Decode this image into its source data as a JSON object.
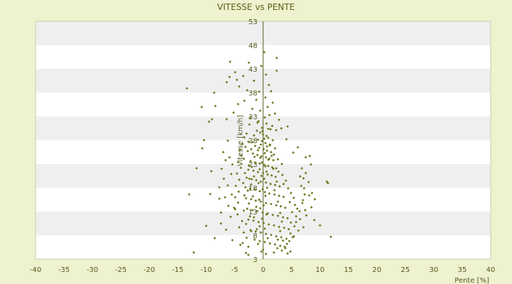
{
  "chart_data": {
    "type": "scatter",
    "title": "VITESSE vs PENTE",
    "xlabel": "Pente [%]",
    "ylabel": "Vitesse [km/h]",
    "xlim": [
      -40,
      40
    ],
    "ylim": [
      3,
      53
    ],
    "xticks": [
      "-40",
      "-35",
      "-30",
      "-25",
      "-20",
      "-15",
      "-10",
      "-5",
      "0",
      "5",
      "10",
      "15",
      "20",
      "25",
      "30",
      "35",
      "40"
    ],
    "yticks": [
      "3",
      "8",
      "13",
      "18",
      "23",
      "28",
      "33",
      "38",
      "43",
      "48",
      "53"
    ],
    "grid": "alternating horizontal bands",
    "colors": {
      "background": "#eef2cf",
      "band_light": "#ffffff",
      "band_dark": "#efefef",
      "marker": "#6b7a1f",
      "axis": "#555a20"
    },
    "points": [
      [
        -13.4,
        38.9
      ],
      [
        -12.2,
        4.4
      ],
      [
        -10.8,
        35.0
      ],
      [
        -10.0,
        10.0
      ],
      [
        -9.5,
        31.9
      ],
      [
        -9.0,
        32.4
      ],
      [
        -8.4,
        35.2
      ],
      [
        -8.6,
        38.0
      ],
      [
        -10.4,
        28.0
      ],
      [
        -10.7,
        26.3
      ],
      [
        -9.3,
        16.7
      ],
      [
        -9.1,
        21.5
      ],
      [
        -11.7,
        22.1
      ],
      [
        -13.0,
        16.6
      ],
      [
        -8.5,
        7.4
      ],
      [
        -7.7,
        15.7
      ],
      [
        -7.4,
        12.8
      ],
      [
        -7.4,
        10.5
      ],
      [
        -5.8,
        44.5
      ],
      [
        -5.9,
        41.3
      ],
      [
        -6.4,
        40.2
      ],
      [
        -4.9,
        42.3
      ],
      [
        -4.6,
        40.7
      ],
      [
        -4.4,
        35.6
      ],
      [
        -5.2,
        33.8
      ],
      [
        -6.4,
        32.4
      ],
      [
        -6.2,
        27.9
      ],
      [
        -7.0,
        25.5
      ],
      [
        -5.9,
        24.4
      ],
      [
        -5.4,
        22.9
      ],
      [
        -5.6,
        20.9
      ],
      [
        -6.2,
        18.5
      ],
      [
        -5.5,
        16.6
      ],
      [
        -4.9,
        13.5
      ],
      [
        -4.2,
        39.3
      ],
      [
        -3.3,
        36.3
      ],
      [
        -3.5,
        41.5
      ],
      [
        -2.8,
        38.5
      ],
      [
        -2.5,
        44.3
      ],
      [
        -4.0,
        6.0
      ],
      [
        -3.0,
        4.3
      ],
      [
        -2.6,
        3.9
      ],
      [
        0.2,
        46.5
      ],
      [
        2.4,
        45.3
      ],
      [
        2.4,
        42.6
      ],
      [
        1.4,
        38.3
      ],
      [
        1.1,
        33.3
      ],
      [
        1.6,
        31.0
      ],
      [
        2.3,
        30.1
      ],
      [
        3.2,
        30.5
      ],
      [
        4.3,
        30.9
      ],
      [
        4.1,
        28.2
      ],
      [
        5.3,
        25.4
      ],
      [
        6.1,
        26.5
      ],
      [
        7.5,
        24.4
      ],
      [
        8.4,
        22.9
      ],
      [
        8.2,
        24.7
      ],
      [
        7.5,
        21.1
      ],
      [
        6.5,
        20.4
      ],
      [
        8.0,
        19.2
      ],
      [
        7.2,
        17.9
      ],
      [
        8.1,
        16.4
      ],
      [
        11.2,
        19.3
      ],
      [
        11.4,
        19.0
      ],
      [
        7.0,
        15.4
      ],
      [
        6.4,
        13.1
      ],
      [
        7.6,
        12.2
      ],
      [
        5.8,
        10.8
      ],
      [
        7.1,
        9.7
      ],
      [
        5.2,
        7.6
      ],
      [
        4.6,
        6.8
      ],
      [
        10.0,
        10.1
      ],
      [
        11.9,
        7.7
      ],
      [
        3.9,
        5.3
      ],
      [
        4.8,
        4.6
      ],
      [
        4.3,
        4.2
      ],
      [
        3.3,
        4.8
      ],
      [
        2.5,
        5.3
      ],
      [
        1.9,
        4.4
      ],
      [
        -1.1,
        30.0
      ],
      [
        -0.5,
        29.6
      ],
      [
        0.0,
        29.2
      ],
      [
        0.6,
        28.9
      ],
      [
        0.9,
        28.5
      ],
      [
        -0.9,
        28.1
      ],
      [
        -0.2,
        27.8
      ],
      [
        0.4,
        27.4
      ],
      [
        1.2,
        27.1
      ],
      [
        -1.4,
        26.8
      ],
      [
        -0.7,
        26.4
      ],
      [
        0.1,
        26.1
      ],
      [
        0.7,
        25.8
      ],
      [
        1.4,
        25.5
      ],
      [
        -1.8,
        25.2
      ],
      [
        -1.0,
        24.9
      ],
      [
        -0.3,
        24.6
      ],
      [
        0.5,
        24.4
      ],
      [
        1.1,
        24.1
      ],
      [
        1.8,
        23.8
      ],
      [
        -2.2,
        23.6
      ],
      [
        -1.4,
        23.3
      ],
      [
        -0.6,
        23.1
      ],
      [
        0.2,
        22.8
      ],
      [
        0.9,
        22.6
      ],
      [
        1.6,
        22.3
      ],
      [
        2.3,
        22.1
      ],
      [
        -2.6,
        21.8
      ],
      [
        -1.7,
        21.6
      ],
      [
        -0.9,
        21.3
      ],
      [
        0.0,
        21.1
      ],
      [
        0.8,
        20.8
      ],
      [
        1.5,
        20.6
      ],
      [
        2.2,
        20.3
      ],
      [
        -2.9,
        20.1
      ],
      [
        -2.0,
        19.8
      ],
      [
        -1.2,
        19.6
      ],
      [
        -0.4,
        19.3
      ],
      [
        0.5,
        19.1
      ],
      [
        1.3,
        18.8
      ],
      [
        2.1,
        18.6
      ],
      [
        2.9,
        18.3
      ],
      [
        -3.1,
        18.1
      ],
      [
        -2.3,
        17.8
      ],
      [
        -1.5,
        17.6
      ],
      [
        -0.6,
        17.3
      ],
      [
        0.3,
        17.1
      ],
      [
        1.1,
        16.8
      ],
      [
        2.0,
        16.6
      ],
      [
        2.8,
        16.3
      ],
      [
        3.6,
        16.1
      ],
      [
        -3.0,
        15.8
      ],
      [
        -2.1,
        15.6
      ],
      [
        -1.3,
        15.3
      ],
      [
        -0.4,
        15.1
      ],
      [
        0.5,
        14.8
      ],
      [
        1.4,
        14.6
      ],
      [
        2.3,
        14.3
      ],
      [
        3.1,
        14.1
      ],
      [
        3.9,
        13.8
      ],
      [
        -2.8,
        13.6
      ],
      [
        -1.9,
        13.3
      ],
      [
        -1.0,
        13.1
      ],
      [
        -0.1,
        12.8
      ],
      [
        0.8,
        12.6
      ],
      [
        1.7,
        12.3
      ],
      [
        2.6,
        12.1
      ],
      [
        3.5,
        11.8
      ],
      [
        4.3,
        11.6
      ],
      [
        -2.6,
        11.3
      ],
      [
        -1.7,
        11.1
      ],
      [
        -0.8,
        10.8
      ],
      [
        0.1,
        10.6
      ],
      [
        1.0,
        10.3
      ],
      [
        1.9,
        10.1
      ],
      [
        2.8,
        9.8
      ],
      [
        3.7,
        9.6
      ],
      [
        4.5,
        9.3
      ],
      [
        -2.2,
        9.1
      ],
      [
        -1.3,
        8.8
      ],
      [
        -0.4,
        8.6
      ],
      [
        0.5,
        8.3
      ],
      [
        1.4,
        8.1
      ],
      [
        2.3,
        7.8
      ],
      [
        3.2,
        7.6
      ],
      [
        4.1,
        7.3
      ],
      [
        -1.5,
        7.1
      ],
      [
        -0.6,
        6.8
      ],
      [
        0.3,
        6.6
      ],
      [
        1.2,
        6.3
      ],
      [
        2.1,
        6.1
      ],
      [
        3.0,
        5.8
      ],
      [
        3.8,
        5.6
      ],
      [
        -0.2,
        30.6
      ],
      [
        0.6,
        31.5
      ],
      [
        -0.8,
        32.0
      ],
      [
        0.3,
        32.8
      ],
      [
        -0.5,
        34.2
      ],
      [
        0.8,
        35.0
      ],
      [
        -1.2,
        36.5
      ],
      [
        0.4,
        37.0
      ],
      [
        -0.7,
        38.2
      ],
      [
        1.0,
        39.6
      ],
      [
        -1.6,
        40.5
      ],
      [
        0.5,
        41.8
      ],
      [
        -0.3,
        43.6
      ],
      [
        1.2,
        26.9
      ],
      [
        1.9,
        25.0
      ],
      [
        2.6,
        24.0
      ],
      [
        3.3,
        23.0
      ],
      [
        2.7,
        21.4
      ],
      [
        3.4,
        20.7
      ],
      [
        4.0,
        19.5
      ],
      [
        3.6,
        18.8
      ],
      [
        4.4,
        17.9
      ],
      [
        4.9,
        16.9
      ],
      [
        5.4,
        15.9
      ],
      [
        4.7,
        15.0
      ],
      [
        5.6,
        14.4
      ],
      [
        6.0,
        13.6
      ],
      [
        5.1,
        12.9
      ],
      [
        5.8,
        12.0
      ],
      [
        6.5,
        11.4
      ],
      [
        4.9,
        10.7
      ],
      [
        5.5,
        9.9
      ],
      [
        6.2,
        9.0
      ],
      [
        4.8,
        8.4
      ],
      [
        5.4,
        7.8
      ],
      [
        3.5,
        6.9
      ],
      [
        4.2,
        6.2
      ],
      [
        -3.6,
        27.2
      ],
      [
        -4.1,
        26.0
      ],
      [
        -3.8,
        24.8
      ],
      [
        -4.4,
        23.4
      ],
      [
        -3.9,
        22.2
      ],
      [
        -4.6,
        21.0
      ],
      [
        -4.2,
        19.7
      ],
      [
        -4.8,
        18.4
      ],
      [
        -4.3,
        17.2
      ],
      [
        -4.9,
        16.0
      ],
      [
        -4.4,
        14.9
      ],
      [
        -5.1,
        13.8
      ],
      [
        -4.5,
        12.4
      ],
      [
        -3.7,
        11.0
      ],
      [
        -4.2,
        9.7
      ],
      [
        -3.4,
        8.6
      ],
      [
        -2.9,
        7.5
      ],
      [
        -3.6,
        6.4
      ],
      [
        -2.4,
        31.3
      ],
      [
        -2.9,
        29.4
      ],
      [
        -3.3,
        28.6
      ],
      [
        -2.6,
        27.7
      ],
      [
        -3.1,
        26.6
      ],
      [
        -2.7,
        25.7
      ],
      [
        -3.4,
        24.1
      ],
      [
        -2.5,
        22.7
      ],
      [
        -3.2,
        21.1
      ],
      [
        -2.4,
        19.9
      ],
      [
        -3.5,
        19.0
      ],
      [
        -2.7,
        17.4
      ],
      [
        -3.3,
        16.4
      ],
      [
        -2.5,
        14.7
      ],
      [
        -3.4,
        13.2
      ],
      [
        -2.3,
        12.0
      ],
      [
        -3.0,
        10.4
      ],
      [
        -2.1,
        8.9
      ],
      [
        -2.6,
        5.6
      ],
      [
        1.7,
        35.9
      ],
      [
        -1.9,
        34.6
      ],
      [
        2.1,
        33.6
      ],
      [
        -2.3,
        32.7
      ],
      [
        2.8,
        32.3
      ],
      [
        -1.0,
        31.7
      ],
      [
        0.9,
        30.4
      ],
      [
        -0.1,
        29.9
      ],
      [
        0.2,
        28.3
      ],
      [
        -0.4,
        27.1
      ],
      [
        0.7,
        26.7
      ],
      [
        -0.9,
        25.9
      ],
      [
        0.3,
        25.3
      ],
      [
        -0.5,
        24.3
      ],
      [
        0.9,
        23.9
      ],
      [
        -0.2,
        23.3
      ],
      [
        0.4,
        22.5
      ],
      [
        -0.6,
        21.9
      ],
      [
        0.6,
        21.4
      ],
      [
        -0.3,
        20.5
      ],
      [
        0.2,
        19.9
      ],
      [
        -0.8,
        19.0
      ],
      [
        0.7,
        18.0
      ],
      [
        -0.1,
        17.7
      ],
      [
        0.4,
        16.3
      ],
      [
        -0.7,
        15.5
      ],
      [
        0.1,
        14.3
      ],
      [
        -0.5,
        13.7
      ],
      [
        0.6,
        12.4
      ],
      [
        -0.2,
        11.5
      ],
      [
        0.3,
        9.4
      ],
      [
        -0.6,
        9.9
      ],
      [
        0.8,
        7.4
      ],
      [
        0.0,
        5.0
      ],
      [
        -0.3,
        4.6
      ],
      [
        0.5,
        4.1
      ],
      [
        1.5,
        24.7
      ],
      [
        1.8,
        22.0
      ],
      [
        2.4,
        19.3
      ],
      [
        2.0,
        17.5
      ],
      [
        2.6,
        15.1
      ],
      [
        3.0,
        12.7
      ],
      [
        3.3,
        10.9
      ],
      [
        3.0,
        8.9
      ],
      [
        2.6,
        7.1
      ],
      [
        -1.6,
        29.0
      ],
      [
        -1.9,
        27.6
      ],
      [
        -2.1,
        26.1
      ],
      [
        -1.5,
        24.5
      ],
      [
        -2.0,
        22.4
      ],
      [
        -1.6,
        20.4
      ],
      [
        -2.1,
        18.7
      ],
      [
        -1.8,
        16.2
      ],
      [
        -1.2,
        14.0
      ],
      [
        -1.6,
        11.8
      ],
      [
        -1.1,
        9.3
      ],
      [
        -0.9,
        6.2
      ],
      [
        1.3,
        30.3
      ],
      [
        1.7,
        28.0
      ],
      [
        2.1,
        26.3
      ],
      [
        -6.6,
        23.8
      ],
      [
        -7.3,
        22.0
      ],
      [
        -6.9,
        19.9
      ],
      [
        -7.7,
        18.1
      ],
      [
        -6.7,
        16.0
      ],
      [
        -6.1,
        14.2
      ],
      [
        -5.7,
        11.9
      ],
      [
        -6.5,
        9.2
      ],
      [
        -5.4,
        7.0
      ],
      [
        6.8,
        22.1
      ],
      [
        7.1,
        20.0
      ],
      [
        6.7,
        18.4
      ],
      [
        7.3,
        16.6
      ],
      [
        6.9,
        14.8
      ],
      [
        7.4,
        13.3
      ],
      [
        8.6,
        16.9
      ],
      [
        9.1,
        15.6
      ],
      [
        8.5,
        13.9
      ],
      [
        9.0,
        11.2
      ]
    ]
  }
}
